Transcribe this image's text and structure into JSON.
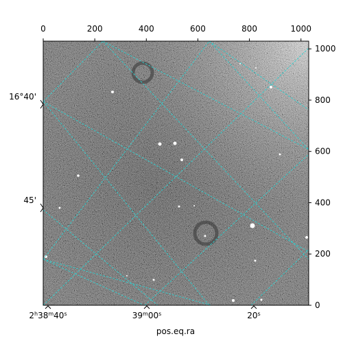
{
  "chart_data": {
    "type": "image",
    "xlabel": "pos.eq.ra",
    "pixel_x_ticks": [
      "0",
      "200",
      "400",
      "600",
      "800",
      "1000"
    ],
    "pixel_y_ticks": [
      "0",
      "200",
      "400",
      "600",
      "800",
      "1000"
    ],
    "ra_ticks": [
      {
        "label": "2h38m40s",
        "parts": [
          [
            "2",
            ""
          ],
          [
            "h",
            "sup"
          ],
          [
            "38",
            ""
          ],
          [
            "m",
            "sup"
          ],
          [
            "40",
            ""
          ],
          [
            "s",
            "sup"
          ]
        ]
      },
      {
        "label": "39m00s",
        "parts": [
          [
            "39",
            ""
          ],
          [
            "m",
            "sup"
          ],
          [
            "00",
            ""
          ],
          [
            "s",
            "sup"
          ]
        ]
      },
      {
        "label": "20s",
        "parts": [
          [
            "20",
            ""
          ],
          [
            "s",
            "sup"
          ]
        ]
      }
    ],
    "dec_ticks": [
      "16°40'",
      "45'"
    ],
    "grid": true,
    "grid_color": "#33cccc",
    "colormap": "gray",
    "pixel_xlim": [
      0,
      1030
    ],
    "pixel_ylim": [
      0,
      1030
    ]
  }
}
